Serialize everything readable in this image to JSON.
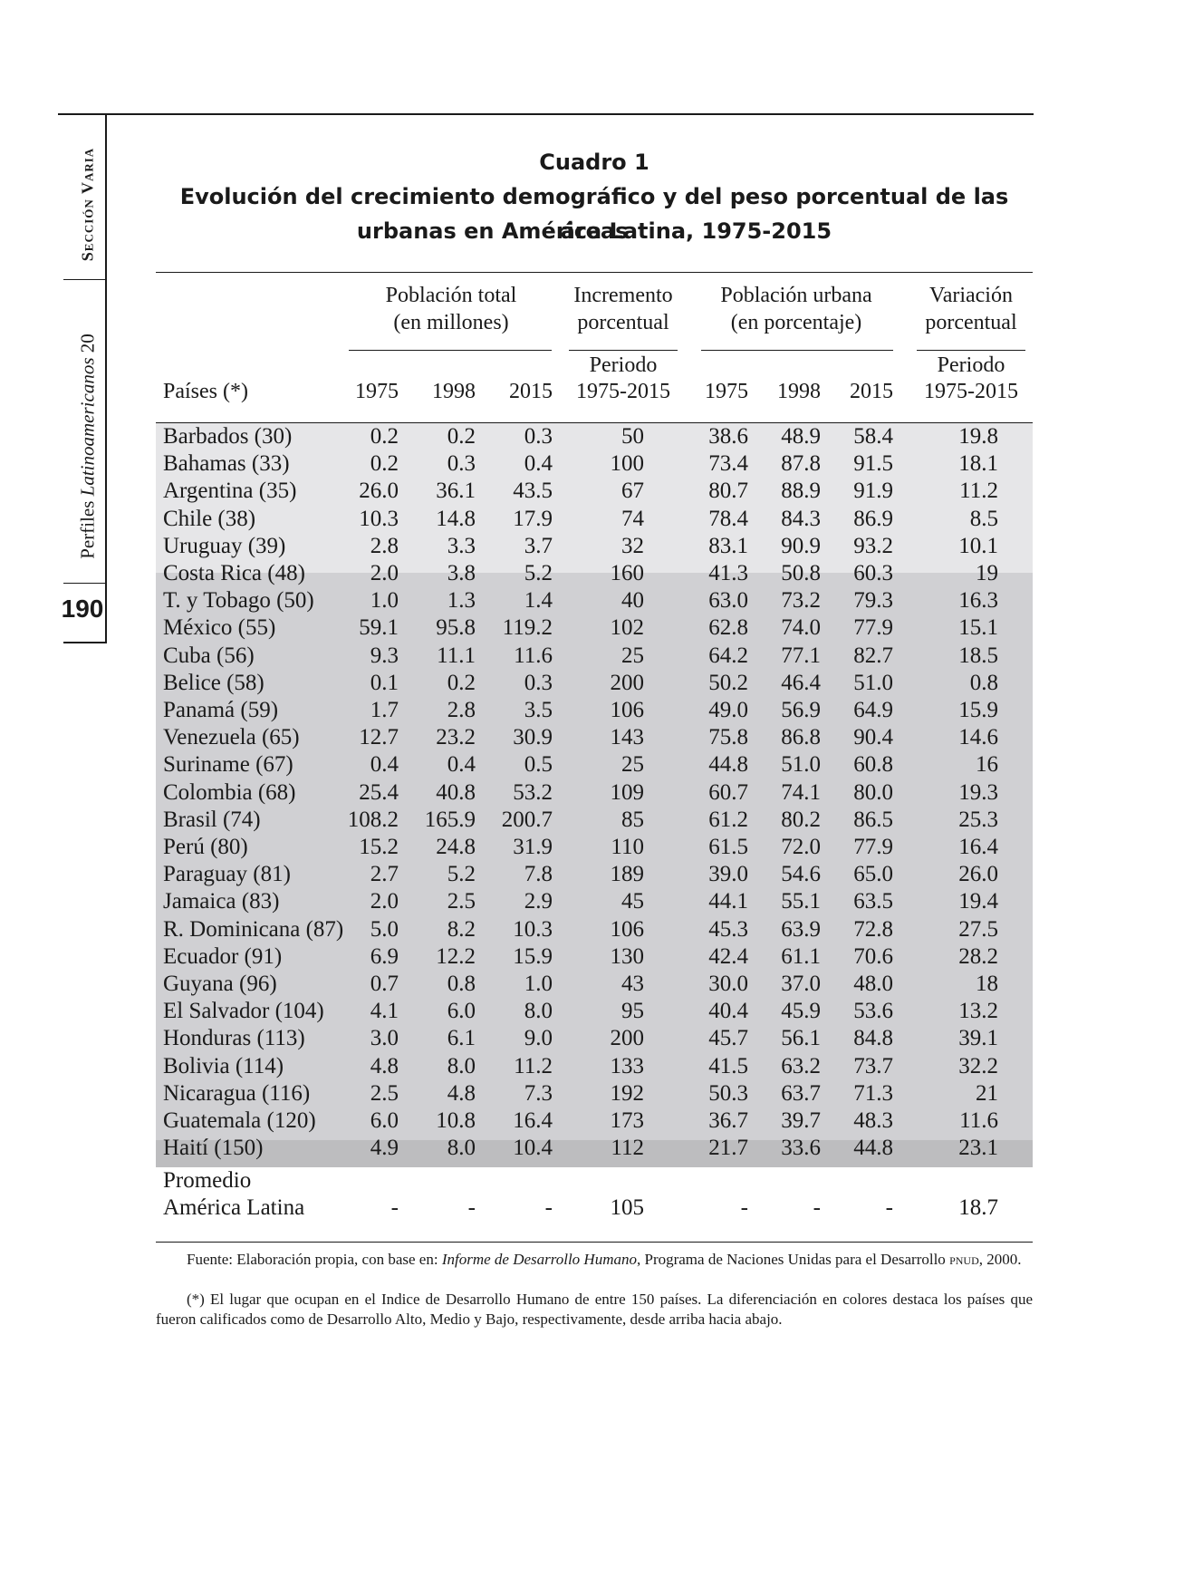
{
  "sidebar": {
    "section": "Sección Varia",
    "journal_name": "Perfiles ",
    "journal_italic": "Latinoamericanos",
    "journal_number": " 20",
    "page_number": "190"
  },
  "title": {
    "line1": "Cuadro 1",
    "line2": "Evolución del crecimiento demográfico y del peso porcentual de las áreas",
    "line3": "urbanas en América Latina, 1975-2015"
  },
  "header_groups": {
    "poblacion_total": [
      "Población total",
      "(en millones)"
    ],
    "incremento": [
      "Incremento",
      "porcentual"
    ],
    "poblacion_urbana": [
      "Población urbana",
      "(en porcentaje)"
    ],
    "variacion": [
      "Variación",
      "porcentual"
    ]
  },
  "column_headers": {
    "paises": "Países (*)",
    "y1975": "1975",
    "y1998": "1998",
    "y2015": "2015",
    "periodo": "Periodo",
    "periodo_range": "1975-2015",
    "u1975": "1975",
    "u1998": "1998",
    "u2015": "2015",
    "vperiodo": "Periodo",
    "vperiodo_range": "1975-2015"
  },
  "rows": [
    {
      "pais": "Barbados (30)",
      "p1975": "0.2",
      "p1998": "0.2",
      "p2015": "0.3",
      "inc": "50",
      "u1975": "38.6",
      "u1998": "48.9",
      "u2015": "58.4",
      "var": "19.8"
    },
    {
      "pais": "Bahamas (33)",
      "p1975": "0.2",
      "p1998": "0.3",
      "p2015": "0.4",
      "inc": "100",
      "u1975": "73.4",
      "u1998": "87.8",
      "u2015": "91.5",
      "var": "18.1"
    },
    {
      "pais": "Argentina (35)",
      "p1975": "26.0",
      "p1998": "36.1",
      "p2015": "43.5",
      "inc": "67",
      "u1975": "80.7",
      "u1998": "88.9",
      "u2015": "91.9",
      "var": "11.2"
    },
    {
      "pais": "Chile (38)",
      "p1975": "10.3",
      "p1998": "14.8",
      "p2015": "17.9",
      "inc": "74",
      "u1975": "78.4",
      "u1998": "84.3",
      "u2015": "86.9",
      "var": "8.5"
    },
    {
      "pais": "Uruguay (39)",
      "p1975": "2.8",
      "p1998": "3.3",
      "p2015": "3.7",
      "inc": "32",
      "u1975": "83.1",
      "u1998": "90.9",
      "u2015": "93.2",
      "var": "10.1"
    },
    {
      "pais": "Costa Rica (48)",
      "p1975": "2.0",
      "p1998": "3.8",
      "p2015": "5.2",
      "inc": "160",
      "u1975": "41.3",
      "u1998": "50.8",
      "u2015": "60.3",
      "var": "19"
    },
    {
      "pais": "T. y Tobago (50)",
      "p1975": "1.0",
      "p1998": "1.3",
      "p2015": "1.4",
      "inc": "40",
      "u1975": "63.0",
      "u1998": "73.2",
      "u2015": "79.3",
      "var": "16.3"
    },
    {
      "pais": "México (55)",
      "p1975": "59.1",
      "p1998": "95.8",
      "p2015": "119.2",
      "inc": "102",
      "u1975": "62.8",
      "u1998": "74.0",
      "u2015": "77.9",
      "var": "15.1"
    },
    {
      "pais": "Cuba (56)",
      "p1975": "9.3",
      "p1998": "11.1",
      "p2015": "11.6",
      "inc": "25",
      "u1975": "64.2",
      "u1998": "77.1",
      "u2015": "82.7",
      "var": "18.5"
    },
    {
      "pais": "Belice (58)",
      "p1975": "0.1",
      "p1998": "0.2",
      "p2015": "0.3",
      "inc": "200",
      "u1975": "50.2",
      "u1998": "46.4",
      "u2015": "51.0",
      "var": "0.8"
    },
    {
      "pais": "Panamá (59)",
      "p1975": "1.7",
      "p1998": "2.8",
      "p2015": "3.5",
      "inc": "106",
      "u1975": "49.0",
      "u1998": "56.9",
      "u2015": "64.9",
      "var": "15.9"
    },
    {
      "pais": "Venezuela (65)",
      "p1975": "12.7",
      "p1998": "23.2",
      "p2015": "30.9",
      "inc": "143",
      "u1975": "75.8",
      "u1998": "86.8",
      "u2015": "90.4",
      "var": "14.6"
    },
    {
      "pais": "Suriname (67)",
      "p1975": "0.4",
      "p1998": "0.4",
      "p2015": "0.5",
      "inc": "25",
      "u1975": "44.8",
      "u1998": "51.0",
      "u2015": "60.8",
      "var": "16"
    },
    {
      "pais": "Colombia (68)",
      "p1975": "25.4",
      "p1998": "40.8",
      "p2015": "53.2",
      "inc": "109",
      "u1975": "60.7",
      "u1998": "74.1",
      "u2015": "80.0",
      "var": "19.3"
    },
    {
      "pais": "Brasil (74)",
      "p1975": "108.2",
      "p1998": "165.9",
      "p2015": "200.7",
      "inc": "85",
      "u1975": "61.2",
      "u1998": "80.2",
      "u2015": "86.5",
      "var": "25.3"
    },
    {
      "pais": "Perú (80)",
      "p1975": "15.2",
      "p1998": "24.8",
      "p2015": "31.9",
      "inc": "110",
      "u1975": "61.5",
      "u1998": "72.0",
      "u2015": "77.9",
      "var": "16.4"
    },
    {
      "pais": "Paraguay (81)",
      "p1975": "2.7",
      "p1998": "5.2",
      "p2015": "7.8",
      "inc": "189",
      "u1975": "39.0",
      "u1998": "54.6",
      "u2015": "65.0",
      "var": "26.0"
    },
    {
      "pais": "Jamaica (83)",
      "p1975": "2.0",
      "p1998": "2.5",
      "p2015": "2.9",
      "inc": "45",
      "u1975": "44.1",
      "u1998": "55.1",
      "u2015": "63.5",
      "var": "19.4"
    },
    {
      "pais": "R. Dominicana (87)",
      "p1975": "5.0",
      "p1998": "8.2",
      "p2015": "10.3",
      "inc": "106",
      "u1975": "45.3",
      "u1998": "63.9",
      "u2015": "72.8",
      "var": "27.5"
    },
    {
      "pais": "Ecuador (91)",
      "p1975": "6.9",
      "p1998": "12.2",
      "p2015": "15.9",
      "inc": "130",
      "u1975": "42.4",
      "u1998": "61.1",
      "u2015": "70.6",
      "var": "28.2"
    },
    {
      "pais": "Guyana (96)",
      "p1975": "0.7",
      "p1998": "0.8",
      "p2015": "1.0",
      "inc": "43",
      "u1975": "30.0",
      "u1998": "37.0",
      "u2015": "48.0",
      "var": "18"
    },
    {
      "pais": "El Salvador (104)",
      "p1975": "4.1",
      "p1998": "6.0",
      "p2015": "8.0",
      "inc": "95",
      "u1975": "40.4",
      "u1998": "45.9",
      "u2015": "53.6",
      "var": "13.2"
    },
    {
      "pais": "Honduras (113)",
      "p1975": "3.0",
      "p1998": "6.1",
      "p2015": "9.0",
      "inc": "200",
      "u1975": "45.7",
      "u1998": "56.1",
      "u2015": "84.8",
      "var": "39.1"
    },
    {
      "pais": "Bolivia (114)",
      "p1975": "4.8",
      "p1998": "8.0",
      "p2015": "11.2",
      "inc": "133",
      "u1975": "41.5",
      "u1998": "63.2",
      "u2015": "73.7",
      "var": "32.2"
    },
    {
      "pais": "Nicaragua (116)",
      "p1975": "2.5",
      "p1998": "4.8",
      "p2015": "7.3",
      "inc": "192",
      "u1975": "50.3",
      "u1998": "63.7",
      "u2015": "71.3",
      "var": "21"
    },
    {
      "pais": "Guatemala (120)",
      "p1975": "6.0",
      "p1998": "10.8",
      "p2015": "16.4",
      "inc": "173",
      "u1975": "36.7",
      "u1998": "39.7",
      "u2015": "48.3",
      "var": "11.6"
    },
    {
      "pais": "Haití (150)",
      "p1975": "4.9",
      "p1998": "8.0",
      "p2015": "10.4",
      "inc": "112",
      "u1975": "21.7",
      "u1998": "33.6",
      "u2015": "44.8",
      "var": "23.1"
    }
  ],
  "average": {
    "label1": "Promedio",
    "label2": "América Latina",
    "p1975": "-",
    "p1998": "-",
    "p2015": "-",
    "inc": "105",
    "u1975": "-",
    "u1998": "-",
    "u2015": "-",
    "var": "18.7"
  },
  "footnotes": {
    "source_prefix": "Fuente: Elaboración propia, con base en: ",
    "source_italic": "Informe de Desarrollo Humano",
    "source_mid": ", Programa de Naciones Unidas para el Desarrollo ",
    "source_abbr": "pnud",
    "source_end": ", 2000.",
    "note": "(*) El lugar que ocupan en el Indice de Desarrollo Humano de entre 150 países. La diferenciación en colores destaca los países que fueron calificados como de Desarrollo Alto, Medio y Bajo, respectivamente, desde arriba hacia abajo."
  },
  "colors": {
    "high_band": "#e6e6e8",
    "medium_band": "#d0d0d3",
    "low_band": "#bdbdbf",
    "text": "#1a1a1a"
  }
}
